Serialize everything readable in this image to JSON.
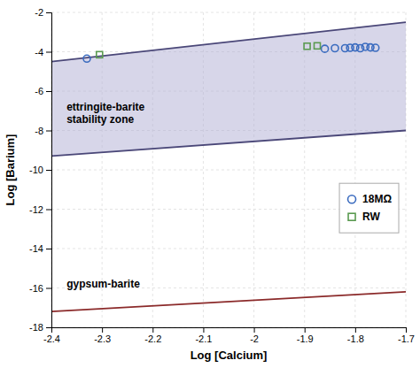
{
  "chart_data": {
    "type": "scatter",
    "xlabel": "Log [Calcium]",
    "ylabel": "Log [Barium]",
    "xlim": [
      -2.4,
      -1.7
    ],
    "ylim": [
      -18,
      -2
    ],
    "xticks": [
      -2.4,
      -2.3,
      -2.2,
      -2.1,
      -2.0,
      -1.9,
      -1.8,
      -1.7
    ],
    "yticks": [
      -18,
      -16,
      -14,
      -12,
      -10,
      -8,
      -6,
      -4,
      -2
    ],
    "grid": true,
    "legend": "lower right",
    "series": [
      {
        "type": "area",
        "color": "#b0aed4",
        "x": [
          -2.4,
          -1.7
        ],
        "values": [
          -4.5,
          -2.5
        ],
        "values_lower": [
          -9.3,
          -8.0
        ]
      },
      {
        "type": "line",
        "color": "#4a4778",
        "x": [
          -2.4,
          -1.7
        ],
        "values": [
          -4.5,
          -2.5
        ]
      },
      {
        "type": "line",
        "color": "#4a4778",
        "x": [
          -2.4,
          -1.7
        ],
        "values": [
          -9.3,
          -8.0
        ]
      },
      {
        "type": "line",
        "color": "#8b2a2a",
        "x": [
          -2.4,
          -1.7
        ],
        "values": [
          -17.2,
          -16.2
        ]
      },
      {
        "name": "18MΩ",
        "type": "scatter",
        "marker": "circle",
        "color": "#3a6bbf",
        "x": [
          -2.33,
          -1.86,
          -1.84,
          -1.82,
          -1.81,
          -1.8,
          -1.79,
          -1.78,
          -1.77,
          -1.76
        ],
        "values": [
          -4.35,
          -3.85,
          -3.82,
          -3.82,
          -3.8,
          -3.78,
          -3.82,
          -3.75,
          -3.78,
          -3.8
        ]
      },
      {
        "name": "RW",
        "type": "scatter",
        "marker": "square",
        "color": "#5a9a50",
        "x": [
          -2.305,
          -1.895,
          -1.875
        ],
        "values": [
          -4.15,
          -3.72,
          -3.7
        ]
      }
    ],
    "annotations": [
      {
        "text": "ettringite-barite\nstability zone",
        "x": -2.37,
        "y": -6.5
      },
      {
        "text": "gypsum-barite",
        "x": -2.37,
        "y": -15.8
      }
    ]
  }
}
